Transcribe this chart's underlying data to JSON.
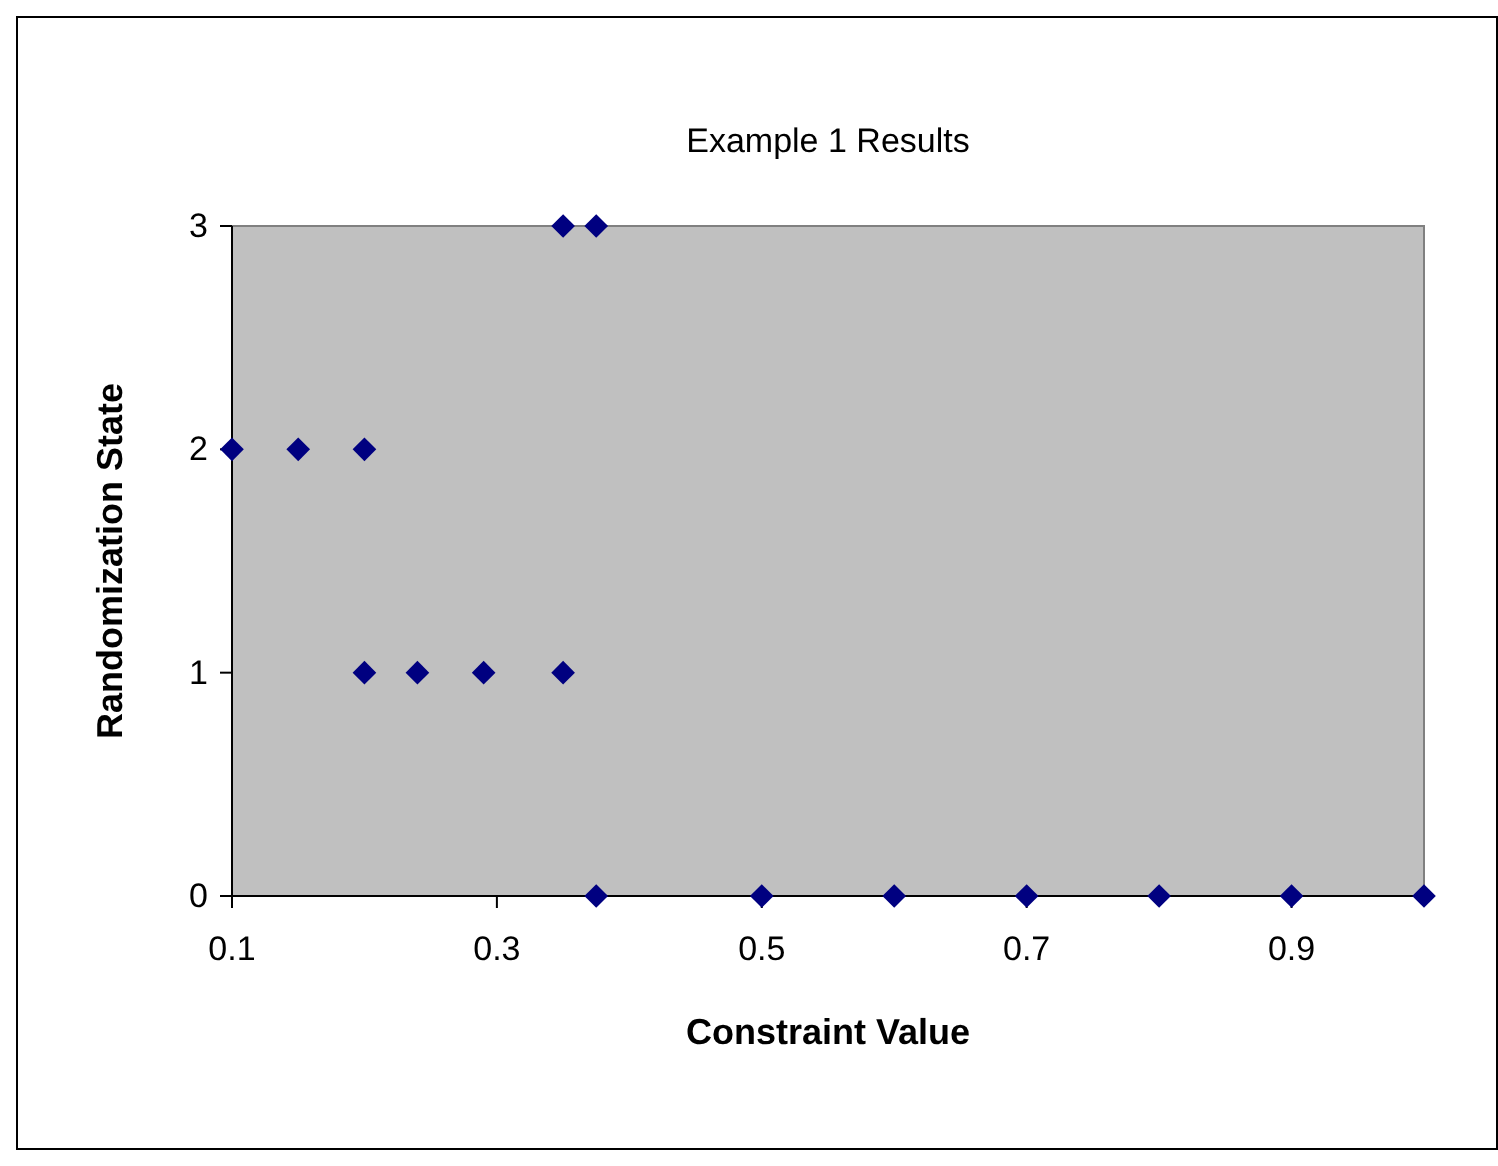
{
  "chart_data": {
    "type": "scatter",
    "title": "Example 1 Results",
    "xlabel": "Constraint Value",
    "ylabel": "Randomization State",
    "x": [
      0.1,
      0.15,
      0.2,
      0.2,
      0.24,
      0.29,
      0.35,
      0.35,
      0.375,
      0.375,
      0.5,
      0.6,
      0.7,
      0.8,
      0.9,
      1.0
    ],
    "series": [
      {
        "color": "#000080",
        "values": [
          2,
          2,
          2,
          1,
          1,
          1,
          1,
          3,
          3,
          0,
          0,
          0,
          0,
          0,
          0,
          0
        ]
      }
    ],
    "marker": "diamond",
    "xlim": [
      0.1,
      1.0
    ],
    "xticks": [
      0.1,
      0.3,
      0.5,
      0.7,
      0.9
    ],
    "ylim": [
      0,
      3
    ],
    "yticks": [
      0,
      1,
      2,
      3
    ],
    "grid": false
  }
}
